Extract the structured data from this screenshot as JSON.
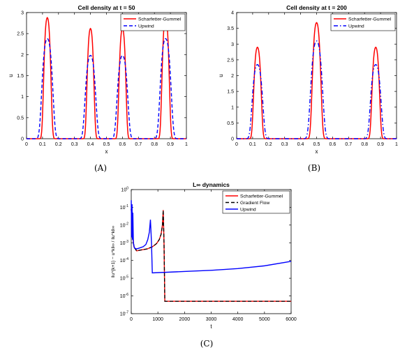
{
  "captions": {
    "a": "(A)",
    "b": "(B)",
    "c": "(C)"
  },
  "chart_data": [
    {
      "type": "line",
      "title": "Cell density at t = 50",
      "xlabel": "x",
      "ylabel": "u",
      "xlim": [
        0,
        1
      ],
      "ylim": [
        0,
        3
      ],
      "xticks": [
        "0",
        "0.1",
        "0.2",
        "0.3",
        "0.4",
        "0.5",
        "0.6",
        "0.7",
        "0.8",
        "0.9",
        "1"
      ],
      "yticks": [
        "0",
        "0.5",
        "1",
        "1.5",
        "2",
        "2.5",
        "3"
      ],
      "legend_position": "top-right",
      "series": [
        {
          "name": "Scharfetter-Gummel",
          "color": "#ff0000",
          "dash": "solid",
          "peaks": [
            {
              "x": 0.13,
              "height": 2.88,
              "width": 0.022
            },
            {
              "x": 0.4,
              "height": 2.62,
              "width": 0.021
            },
            {
              "x": 0.6,
              "height": 2.62,
              "width": 0.021
            },
            {
              "x": 0.87,
              "height": 2.88,
              "width": 0.022
            }
          ]
        },
        {
          "name": "Upwind",
          "color": "#0000ff",
          "dash": "dashed",
          "peaks": [
            {
              "x": 0.13,
              "height": 2.38,
              "width": 0.033
            },
            {
              "x": 0.4,
              "height": 1.98,
              "width": 0.032
            },
            {
              "x": 0.6,
              "height": 1.98,
              "width": 0.032
            },
            {
              "x": 0.87,
              "height": 2.38,
              "width": 0.033
            }
          ]
        }
      ]
    },
    {
      "type": "line",
      "title": "Cell density at t = 200",
      "xlabel": "x",
      "ylabel": "u",
      "xlim": [
        0,
        1
      ],
      "ylim": [
        0,
        4
      ],
      "xticks": [
        "0",
        "0.1",
        "0.2",
        "0.3",
        "0.4",
        "0.5",
        "0.6",
        "0.7",
        "0.8",
        "0.9",
        "1"
      ],
      "yticks": [
        "0",
        "0.5",
        "1",
        "1.5",
        "2",
        "2.5",
        "3",
        "3.5",
        "4"
      ],
      "legend_position": "top-right",
      "series": [
        {
          "name": "Scharfetter-Gummel",
          "color": "#ff0000",
          "dash": "solid",
          "peaks": [
            {
              "x": 0.13,
              "height": 2.9,
              "width": 0.023
            },
            {
              "x": 0.5,
              "height": 3.68,
              "width": 0.026
            },
            {
              "x": 0.87,
              "height": 2.9,
              "width": 0.023
            }
          ]
        },
        {
          "name": "Upwind",
          "color": "#0000ff",
          "dash": "dashdot",
          "peaks": [
            {
              "x": 0.13,
              "height": 2.35,
              "width": 0.032
            },
            {
              "x": 0.5,
              "height": 3.1,
              "width": 0.036
            },
            {
              "x": 0.87,
              "height": 2.35,
              "width": 0.032
            }
          ]
        }
      ]
    },
    {
      "type": "line",
      "title": "L∞ dynamics",
      "xlabel": "t",
      "ylabel": "‖u^{k+1} − u^k‖∞ / ‖u^k‖∞",
      "xlim": [
        0,
        6000
      ],
      "ylim": [
        1e-07,
        1
      ],
      "yscale": "log",
      "xticks": [
        "0",
        "1000",
        "2000",
        "3000",
        "4000",
        "5000",
        "6000"
      ],
      "yticks": [
        "10-7",
        "10-6",
        "10-5",
        "10-4",
        "10-3",
        "10-2",
        "10-1",
        "100"
      ],
      "legend_position": "top-right",
      "series": [
        {
          "name": "Scharfetter-Gummel",
          "color": "#ff0000",
          "dash": "solid",
          "points": [
            [
              0,
              0.08
            ],
            [
              20,
              0.02
            ],
            [
              40,
              0.006
            ],
            [
              60,
              0.002
            ],
            [
              100,
              0.0006
            ],
            [
              200,
              0.00035
            ],
            [
              400,
              0.0004
            ],
            [
              600,
              0.00045
            ],
            [
              800,
              0.0006
            ],
            [
              950,
              0.0009
            ],
            [
              1050,
              0.0015
            ],
            [
              1120,
              0.003
            ],
            [
              1170,
              0.01
            ],
            [
              1200,
              0.07
            ],
            [
              1230,
              0.001
            ],
            [
              1260,
              5e-07
            ],
            [
              3000,
              5e-07
            ],
            [
              6000,
              5e-07
            ]
          ]
        },
        {
          "name": "Gradient Flow",
          "color": "#000000",
          "dash": "dashed",
          "points": [
            [
              0,
              0.08
            ],
            [
              20,
              0.02
            ],
            [
              40,
              0.006
            ],
            [
              60,
              0.002
            ],
            [
              100,
              0.0006
            ],
            [
              200,
              0.00035
            ],
            [
              400,
              0.0004
            ],
            [
              600,
              0.00045
            ],
            [
              800,
              0.0006
            ],
            [
              950,
              0.0009
            ],
            [
              1050,
              0.0015
            ],
            [
              1120,
              0.003
            ],
            [
              1170,
              0.01
            ],
            [
              1200,
              0.07
            ],
            [
              1230,
              0.001
            ],
            [
              1260,
              5e-07
            ],
            [
              3000,
              5e-07
            ],
            [
              6000,
              5e-07
            ]
          ]
        },
        {
          "name": "Upwind",
          "color": "#0000ff",
          "dash": "solid",
          "points": [
            [
              0,
              0.25
            ],
            [
              15,
              0.002
            ],
            [
              30,
              0.15
            ],
            [
              45,
              0.0015
            ],
            [
              60,
              0.05
            ],
            [
              80,
              0.001
            ],
            [
              120,
              0.0005
            ],
            [
              200,
              0.00045
            ],
            [
              300,
              0.0005
            ],
            [
              450,
              0.0006
            ],
            [
              550,
              0.0008
            ],
            [
              620,
              0.0015
            ],
            [
              680,
              0.004
            ],
            [
              720,
              0.02
            ],
            [
              760,
              0.001
            ],
            [
              790,
              2e-05
            ],
            [
              2000,
              2.4e-05
            ],
            [
              3000,
              2.8e-05
            ],
            [
              4000,
              3.5e-05
            ],
            [
              5000,
              5e-05
            ],
            [
              6000,
              9e-05
            ]
          ]
        }
      ]
    }
  ]
}
